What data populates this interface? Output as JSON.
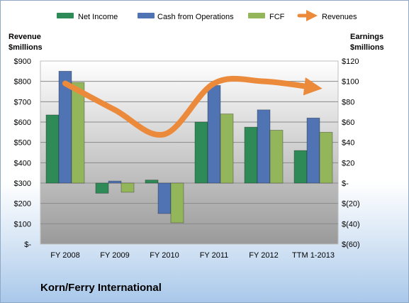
{
  "company_name": "Korn/Ferry International",
  "colors": {
    "net_income": "#2e8b57",
    "cash_from_operations": "#4f73b3",
    "fcf": "#94b65a",
    "revenues": "#ec8a3c"
  },
  "chart_data": {
    "type": "bar",
    "categories": [
      "FY 2008",
      "FY 2009",
      "FY 2010",
      "FY 2011",
      "FY 2012",
      "TTM 1-2013"
    ],
    "series": [
      {
        "name": "Net Income",
        "axis": "right",
        "values": [
          67,
          -10,
          3,
          60,
          55,
          32
        ]
      },
      {
        "name": "Cash from Operations",
        "axis": "right",
        "values": [
          110,
          2,
          -30,
          96,
          72,
          64
        ]
      },
      {
        "name": "FCF",
        "axis": "right",
        "values": [
          99,
          -9,
          -39,
          68,
          52,
          50
        ]
      },
      {
        "name": "Revenues",
        "axis": "left",
        "type": "line",
        "values": [
          790,
          660,
          540,
          790,
          800,
          770
        ]
      }
    ],
    "ylabel_left": "Revenue $millions",
    "ylabel_right": "Earnings $millions",
    "ylim_left": [
      0,
      900
    ],
    "ylim_right": [
      -60,
      120
    ],
    "yticks_left": [
      "$900",
      "$800",
      "$700",
      "$600",
      "$500",
      "$400",
      "$300",
      "$200",
      "$100",
      "$-"
    ],
    "yticks_right": [
      "$120",
      "$100",
      "$80",
      "$60",
      "$40",
      "$20",
      "$-",
      "$(20)",
      "$(40)",
      "$(60)"
    ],
    "legend_position": "top",
    "grid": true
  }
}
